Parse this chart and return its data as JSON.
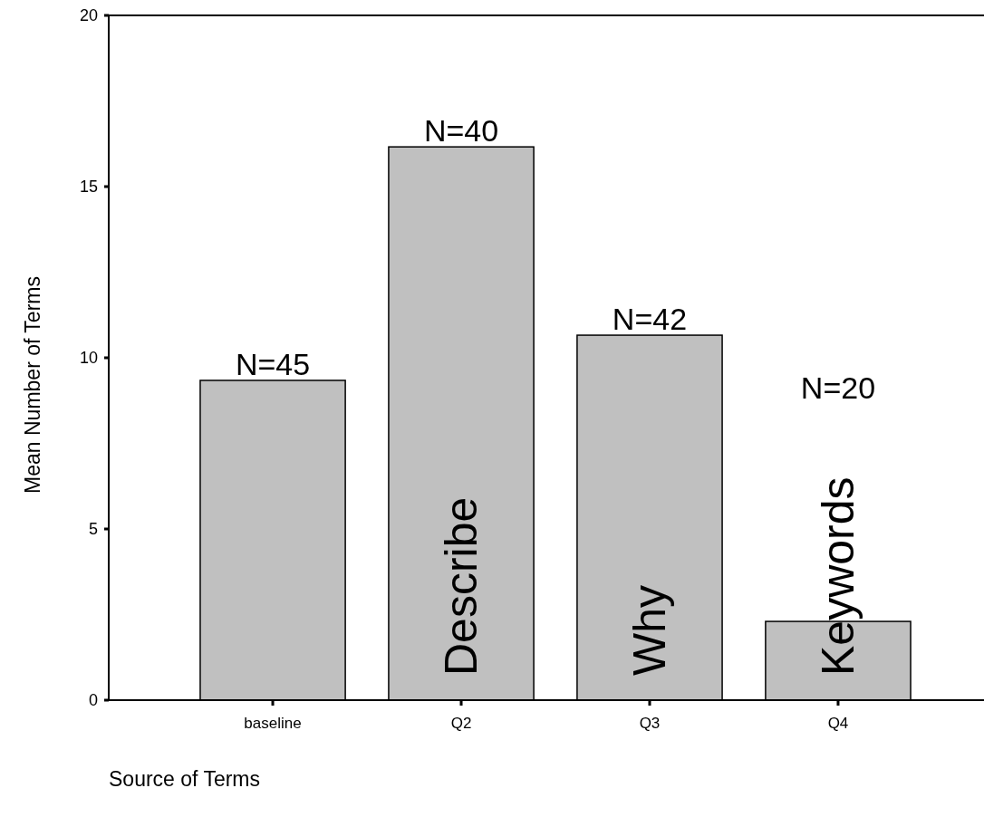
{
  "chart_data": {
    "type": "bar",
    "xlabel": "Source of Terms",
    "ylabel": "Mean Number of Terms",
    "categories": [
      "baseline",
      "Q2",
      "Q3",
      "Q4"
    ],
    "values": [
      9.34,
      16.16,
      10.66,
      2.3
    ],
    "color": "#c0c0c0",
    "ylim": [
      0,
      20
    ],
    "yticks": [
      0,
      5,
      10,
      15,
      20
    ],
    "annotations": [
      {
        "text": "N=45",
        "x": "baseline",
        "y": 9.34
      },
      {
        "text": "N=40",
        "x": "Q2",
        "y": 16.16
      },
      {
        "text": "N=42",
        "x": "Q3",
        "y": 10.66
      },
      "N=20",
      "Describe",
      "Why",
      "Keywords"
    ]
  }
}
